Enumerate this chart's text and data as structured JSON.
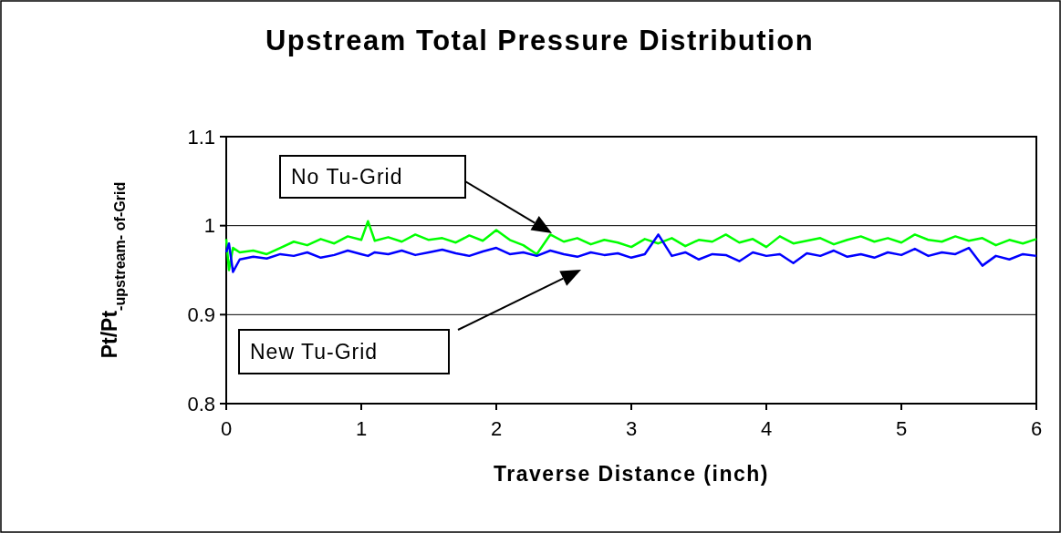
{
  "chart_data": {
    "type": "line",
    "title": "Upstream Total Pressure Distribution",
    "xlabel": "Traverse Distance (inch)",
    "ylabel": "Pt/Pt$_{-upstream- of-Grid}$",
    "x": [
      0,
      0.02,
      0.05,
      0.1,
      0.2,
      0.3,
      0.4,
      0.5,
      0.6,
      0.7,
      0.8,
      0.9,
      1,
      1.05,
      1.1,
      1.2,
      1.3,
      1.4,
      1.5,
      1.6,
      1.7,
      1.8,
      1.9,
      2,
      2.1,
      2.2,
      2.3,
      2.4,
      2.5,
      2.6,
      2.7,
      2.8,
      2.9,
      3,
      3.1,
      3.2,
      3.3,
      3.4,
      3.5,
      3.6,
      3.7,
      3.8,
      3.9,
      4,
      4.1,
      4.2,
      4.3,
      4.4,
      4.5,
      4.6,
      4.7,
      4.8,
      4.9,
      5,
      5.1,
      5.2,
      5.3,
      5.4,
      5.5,
      5.6,
      5.7,
      5.8,
      5.9,
      6
    ],
    "series": [
      {
        "color": "#00ff00",
        "values": [
          0.985,
          0.95,
          0.975,
          0.97,
          0.972,
          0.968,
          0.975,
          0.982,
          0.978,
          0.985,
          0.98,
          0.988,
          0.984,
          1.005,
          0.983,
          0.987,
          0.982,
          0.99,
          0.984,
          0.986,
          0.981,
          0.989,
          0.983,
          0.995,
          0.984,
          0.978,
          0.968,
          0.99,
          0.982,
          0.986,
          0.979,
          0.984,
          0.981,
          0.976,
          0.985,
          0.98,
          0.986,
          0.977,
          0.984,
          0.982,
          0.99,
          0.981,
          0.985,
          0.976,
          0.988,
          0.98,
          0.983,
          0.986,
          0.979,
          0.984,
          0.988,
          0.982,
          0.986,
          0.981,
          0.99,
          0.984,
          0.982,
          0.988,
          0.983,
          0.986,
          0.978,
          0.984,
          0.98,
          0.985
        ]
      },
      {
        "color": "#0000ff",
        "values": [
          0.97,
          0.98,
          0.948,
          0.962,
          0.965,
          0.963,
          0.968,
          0.966,
          0.97,
          0.964,
          0.967,
          0.972,
          0.968,
          0.966,
          0.97,
          0.968,
          0.972,
          0.967,
          0.97,
          0.973,
          0.969,
          0.966,
          0.971,
          0.975,
          0.968,
          0.97,
          0.966,
          0.972,
          0.968,
          0.965,
          0.97,
          0.967,
          0.969,
          0.964,
          0.968,
          0.99,
          0.966,
          0.97,
          0.962,
          0.968,
          0.967,
          0.96,
          0.97,
          0.966,
          0.968,
          0.958,
          0.969,
          0.966,
          0.972,
          0.965,
          0.968,
          0.964,
          0.97,
          0.967,
          0.974,
          0.966,
          0.97,
          0.968,
          0.975,
          0.955,
          0.966,
          0.962,
          0.968,
          0.966
        ]
      }
    ],
    "annotations": [
      "No Tu-Grid",
      "New Tu-Grid"
    ],
    "xlim": [
      0,
      6
    ],
    "xticks": [
      0,
      1,
      2,
      3,
      4,
      5,
      6
    ],
    "ylim": [
      0.8,
      1.1
    ],
    "yticks": [
      0.8,
      0.9,
      1,
      1.1
    ],
    "grid": "y",
    "marker": "none",
    "line_style": "solid"
  }
}
